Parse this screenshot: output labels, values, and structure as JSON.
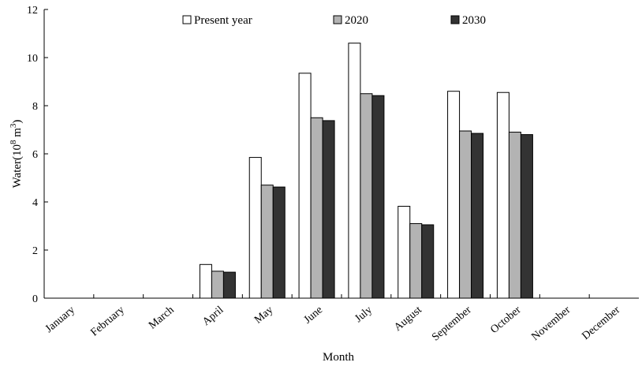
{
  "chart_data": {
    "type": "bar",
    "title": "",
    "xlabel": "Month",
    "ylabel_main": "Water(10",
    "ylabel_sup1": "8",
    "ylabel_mid": " m",
    "ylabel_sup2": "3",
    "ylabel_end": ")",
    "ylim": [
      0,
      12
    ],
    "yticks": [
      "0",
      "2",
      "4",
      "6",
      "8",
      "10",
      "12"
    ],
    "categories": [
      "January",
      "February",
      "March",
      "April",
      "May",
      "June",
      "July",
      "August",
      "September",
      "October",
      "November",
      "December"
    ],
    "series": [
      {
        "name": "Present year",
        "color": "#ffffff",
        "values": [
          0,
          0,
          0,
          1.4,
          5.85,
          9.35,
          10.6,
          3.82,
          8.6,
          8.55,
          0,
          0
        ]
      },
      {
        "name": "2020",
        "color": "#b3b3b3",
        "values": [
          0,
          0,
          0,
          1.12,
          4.7,
          7.5,
          8.5,
          3.1,
          6.95,
          6.9,
          0,
          0
        ]
      },
      {
        "name": "2030",
        "color": "#333333",
        "values": [
          0,
          0,
          0,
          1.08,
          4.62,
          7.38,
          8.42,
          3.05,
          6.85,
          6.8,
          0,
          0
        ]
      }
    ],
    "legend_position": "top",
    "grid": false
  }
}
